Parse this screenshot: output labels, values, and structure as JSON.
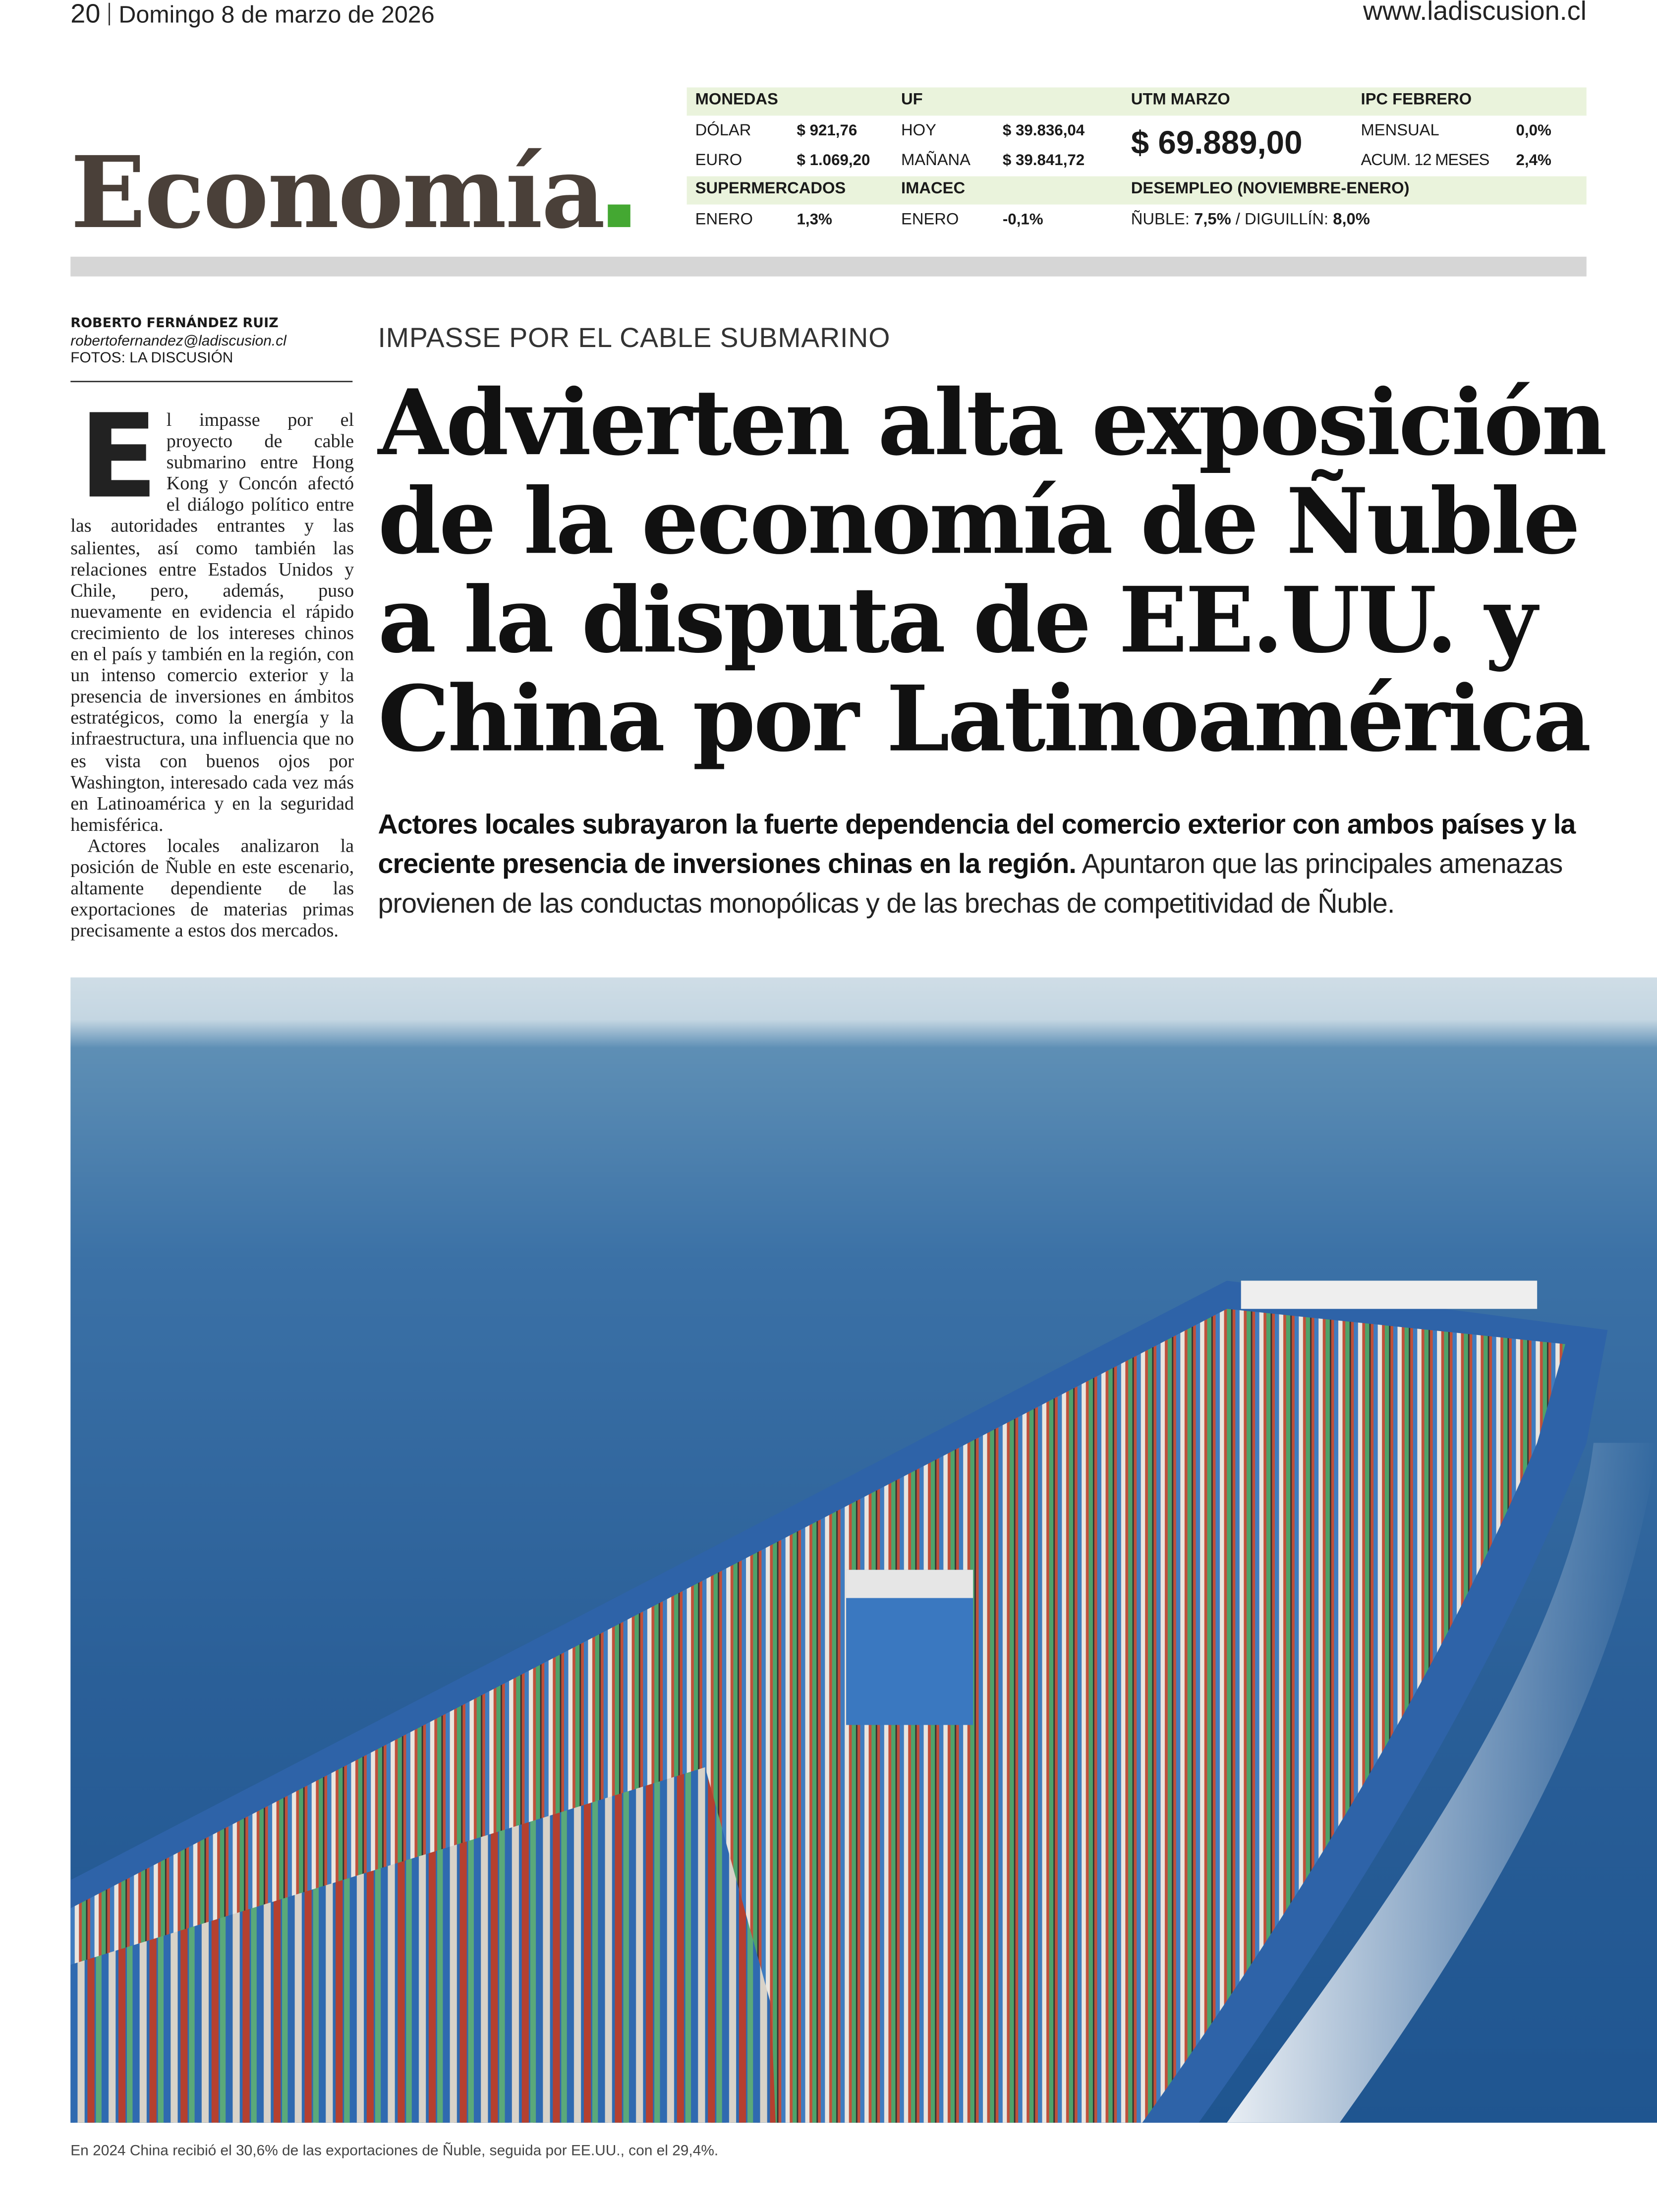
{
  "folio": {
    "page": "20",
    "date": "Domingo 8 de marzo de 2026",
    "url": "www.ladiscusion.cl"
  },
  "section": {
    "title": "Economía",
    "accent": "#44a832",
    "title_color": "#4a4039"
  },
  "indicators": {
    "monedas": {
      "label": "MONEDAS",
      "dolar_label": "DÓLAR",
      "dolar": "$ 921,76",
      "euro_label": "EURO",
      "euro": "$ 1.069,20"
    },
    "uf": {
      "label": "UF",
      "hoy_label": "HOY",
      "hoy": "$ 39.836,04",
      "manana_label": "MAÑANA",
      "manana": "$ 39.841,72"
    },
    "utm": {
      "label": "UTM MARZO",
      "value": "$ 69.889,00"
    },
    "ipc": {
      "label": "IPC FEBRERO",
      "mensual_label": "MENSUAL",
      "mensual": "0,0%",
      "acum_label": "ACUM. 12 MESES",
      "acum": "2,4%"
    },
    "supermercados": {
      "label": "SUPERMERCADOS",
      "mes": "ENERO",
      "value": "1,3%"
    },
    "imacec": {
      "label": "IMACEC",
      "mes": "ENERO",
      "value": "-0,1%"
    },
    "desempleo": {
      "label": "DESEMPLEO (NOVIEMBRE-ENERO)",
      "nuble_label": "ÑUBLE:",
      "nuble": "7,5%",
      "sep": "/",
      "diguillin_label": "DIGUILLÍN:",
      "diguillin": "8,0%"
    },
    "band_color": "#eaf3dc"
  },
  "byline": {
    "author": "ROBERTO FERNÁNDEZ RUIZ",
    "email": "robertofernandez@ladiscusion.cl",
    "photos": "FOTOS: LA DISCUSIÓN"
  },
  "article": {
    "kicker": "IMPASSE POR EL CABLE SUBMARINO",
    "headline": "Advierten alta exposición de la economía de Ñuble a la disputa de EE.UU. y China por Latinoamérica",
    "deck_bold": "Actores locales subrayaron la fuerte dependencia del comercio exterior con ambos países y la creciente presencia de inversiones chinas en la región.",
    "deck_regular": "Apuntaron que las principales amenazas provienen de las conductas monopólicas y de las brechas de competitividad de Ñuble.",
    "drop_cap": "E",
    "paragraph1": "l impasse por el proyecto de cable submarino entre Hong Kong y Concón afectó el diálogo político entre las autoridades entrantes y las salientes, así como también las relaciones entre Estados Unidos y Chile, pero, además, puso nuevamente en evidencia el rápido crecimiento de los intereses chinos en el país y también en la región, con un intenso comercio exterior y la presencia de inversiones en ámbitos estratégicos, como la energía y la infraestructura, una influencia que no es vista con buenos ojos por Washington, interesado cada vez más en Latinoamérica y en la seguridad hemisférica.",
    "paragraph2": "Actores locales analizaron la posición de Ñuble en este escenario, altamente dependiente de las exportaciones de materias primas precisamente a estos dos mercados."
  },
  "photo": {
    "subject": "container-ship-at-sea",
    "caption": "En 2024 China recibió el 30,6% de las exportaciones de Ñuble, seguida por EE.UU., con el 29,4%."
  }
}
